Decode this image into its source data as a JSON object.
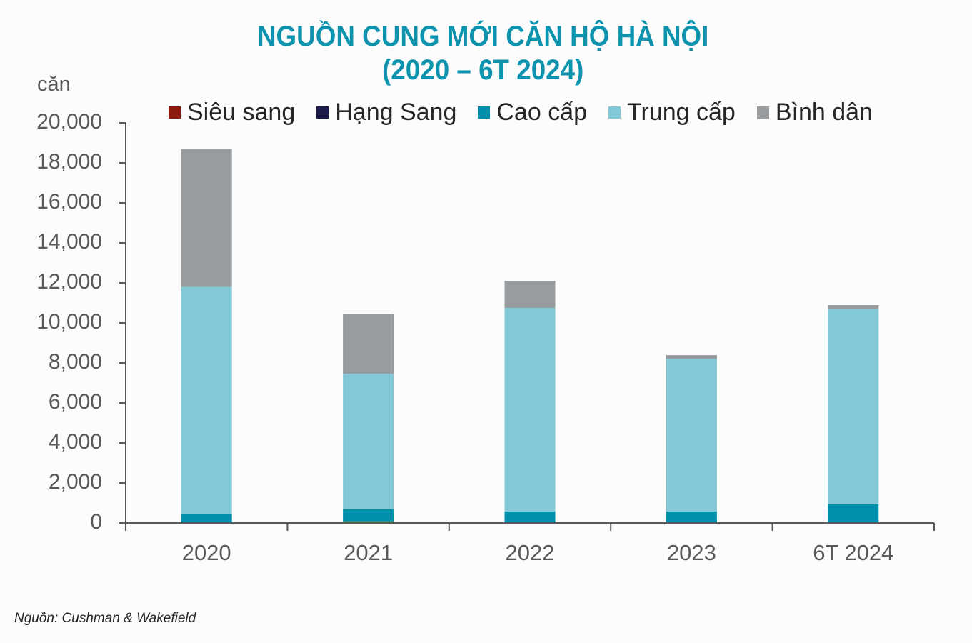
{
  "chart_data": {
    "type": "bar",
    "stacked": true,
    "title": "NGUỒN CUNG MỚI CĂN HỘ HÀ NỘI",
    "subtitle": "(2020 – 6T 2024)",
    "xlabel": "",
    "ylabel": "căn",
    "ylim": [
      0,
      20000
    ],
    "yticks": [
      "0",
      "2,000",
      "4,000",
      "6,000",
      "8,000",
      "10,000",
      "12,000",
      "14,000",
      "16,000",
      "18,000",
      "20,000"
    ],
    "grid": false,
    "legend_position": "top",
    "categories": [
      "2020",
      "2021",
      "2022",
      "2023",
      "6T 2024"
    ],
    "series": [
      {
        "name": "Siêu sang",
        "color": "#8b1a0e",
        "values": [
          0,
          80,
          0,
          0,
          0
        ]
      },
      {
        "name": "Hạng Sang",
        "color": "#1c1a4a",
        "values": [
          0,
          0,
          0,
          0,
          0
        ]
      },
      {
        "name": "Cao cấp",
        "color": "#0090ab",
        "values": [
          430,
          600,
          570,
          570,
          930
        ]
      },
      {
        "name": "Trung cấp",
        "color": "#82c8d6",
        "values": [
          11370,
          6780,
          10180,
          7640,
          9780
        ]
      },
      {
        "name": "Bình dân",
        "color": "#989c9e",
        "values": [
          6900,
          2990,
          1350,
          180,
          180
        ]
      }
    ],
    "totals": [
      18700,
      10450,
      12100,
      8390,
      10890
    ],
    "source": "Nguồn: Cushman & Wakefield"
  },
  "header": {
    "title": "NGUỒN CUNG MỚI CĂN HỘ HÀ NỘI",
    "subtitle": "(2020 – 6T 2024)",
    "unit": "căn"
  },
  "legend": [
    {
      "label": "Siêu sang",
      "color": "#8b1a0e"
    },
    {
      "label": "Hạng Sang",
      "color": "#1c1a4a"
    },
    {
      "label": "Cao cấp",
      "color": "#0090ab"
    },
    {
      "label": "Trung cấp",
      "color": "#82c8d6"
    },
    {
      "label": "Bình dân",
      "color": "#989c9e"
    }
  ],
  "footer": {
    "source": "Nguồn: Cushman & Wakefield"
  }
}
